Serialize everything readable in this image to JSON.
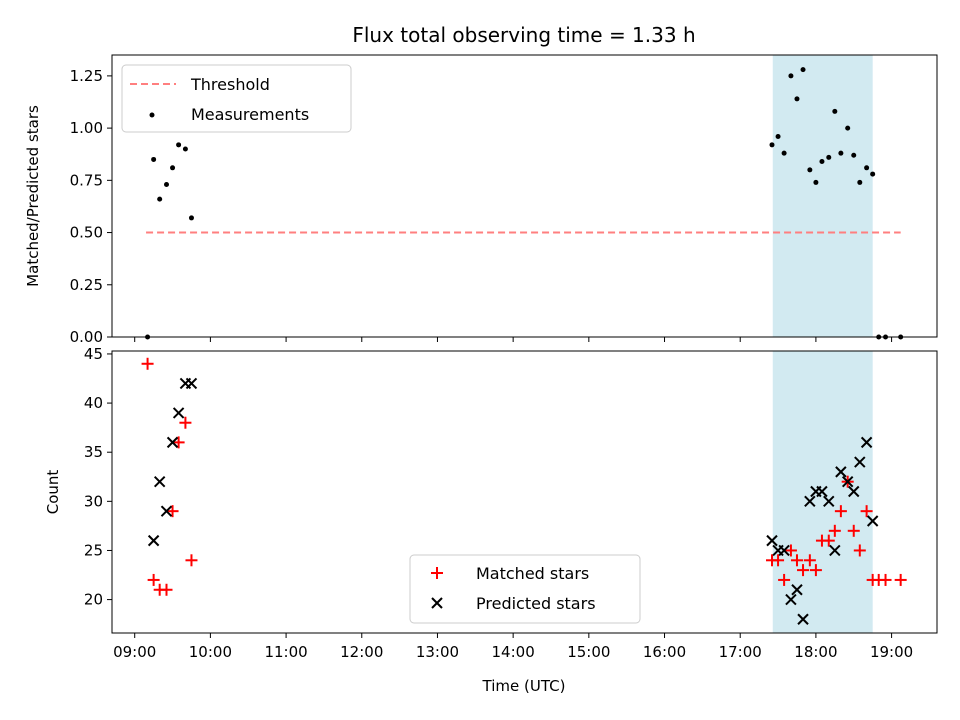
{
  "chart_data": [
    {
      "type": "scatter",
      "title": "Flux total observing time = 1.33 h",
      "xlabel": "",
      "ylabel": "Matched/Predicted stars",
      "xlim": [
        8.7,
        19.6
      ],
      "ylim": [
        0,
        1.35
      ],
      "yticks": [
        0,
        0.25,
        0.5,
        0.75,
        1.0,
        1.25
      ],
      "ytick_labels": [
        "0.00",
        "0.25",
        "0.50",
        "0.75",
        "1.00",
        "1.25"
      ],
      "shaded_region": {
        "x": [
          17.43,
          18.75
        ],
        "color": "#add8e6"
      },
      "legend": {
        "placement": "upper-left",
        "entries": [
          "Threshold",
          "Measurements"
        ]
      },
      "series": [
        {
          "name": "Threshold",
          "style": "dashed-line",
          "color": "#ff7f7f",
          "x": [
            9.15,
            19.12
          ],
          "y": [
            0.5,
            0.5
          ]
        },
        {
          "name": "Measurements",
          "style": "dot",
          "color": "#000000",
          "x": [
            9.17,
            9.25,
            9.33,
            9.42,
            9.5,
            9.58,
            9.67,
            9.75,
            17.42,
            17.5,
            17.58,
            17.67,
            17.75,
            17.83,
            17.92,
            18.0,
            18.08,
            18.17,
            18.25,
            18.33,
            18.42,
            18.5,
            18.58,
            18.67,
            18.75,
            18.83,
            18.92,
            19.12
          ],
          "y": [
            0.0,
            0.85,
            0.66,
            0.73,
            0.81,
            0.92,
            0.9,
            0.57,
            0.92,
            0.96,
            0.88,
            1.25,
            1.14,
            1.28,
            0.8,
            0.74,
            0.84,
            0.86,
            1.08,
            0.88,
            1.0,
            0.87,
            0.74,
            0.81,
            0.78,
            0.0,
            0.0,
            0.0
          ]
        }
      ]
    },
    {
      "type": "scatter",
      "title": "",
      "xlabel": "Time (UTC)",
      "ylabel": "Count",
      "xlim": [
        8.7,
        19.6
      ],
      "ylim": [
        16.6,
        45.3
      ],
      "xticks": [
        9,
        10,
        11,
        12,
        13,
        14,
        15,
        16,
        17,
        18,
        19
      ],
      "xtick_labels": [
        "09:00",
        "10:00",
        "11:00",
        "12:00",
        "13:00",
        "14:00",
        "15:00",
        "16:00",
        "17:00",
        "18:00",
        "19:00"
      ],
      "yticks": [
        20,
        25,
        30,
        35,
        40,
        45
      ],
      "ytick_labels": [
        "20",
        "25",
        "30",
        "35",
        "40",
        "45"
      ],
      "shaded_region": {
        "x": [
          17.43,
          18.75
        ],
        "color": "#add8e6"
      },
      "legend": {
        "placement": "lower-center",
        "entries": [
          "Matched stars",
          "Predicted stars"
        ]
      },
      "series": [
        {
          "name": "Matched stars",
          "marker": "+",
          "color": "#ff0000",
          "x": [
            9.17,
            9.25,
            9.33,
            9.42,
            9.5,
            9.58,
            9.67,
            9.75,
            17.42,
            17.5,
            17.58,
            17.67,
            17.75,
            17.83,
            17.92,
            18.0,
            18.08,
            18.17,
            18.25,
            18.33,
            18.42,
            18.5,
            18.58,
            18.67,
            18.75,
            18.83,
            18.92,
            19.12
          ],
          "y": [
            44,
            22,
            21,
            21,
            29,
            36,
            38,
            24,
            24,
            24,
            22,
            25,
            24,
            23,
            24,
            23,
            26,
            26,
            27,
            29,
            32,
            27,
            25,
            29,
            22,
            22,
            22,
            22
          ]
        },
        {
          "name": "Predicted stars",
          "marker": "x",
          "color": "#000000",
          "x": [
            9.25,
            9.33,
            9.42,
            9.5,
            9.58,
            9.67,
            9.75,
            17.42,
            17.5,
            17.58,
            17.67,
            17.75,
            17.83,
            17.92,
            18.0,
            18.08,
            18.17,
            18.25,
            18.33,
            18.42,
            18.5,
            18.58,
            18.67,
            18.75
          ],
          "y": [
            26,
            32,
            29,
            36,
            39,
            42,
            42,
            26,
            25,
            25,
            20,
            21,
            18,
            30,
            31,
            31,
            30,
            25,
            33,
            32,
            31,
            34,
            36,
            28
          ]
        }
      ]
    }
  ]
}
